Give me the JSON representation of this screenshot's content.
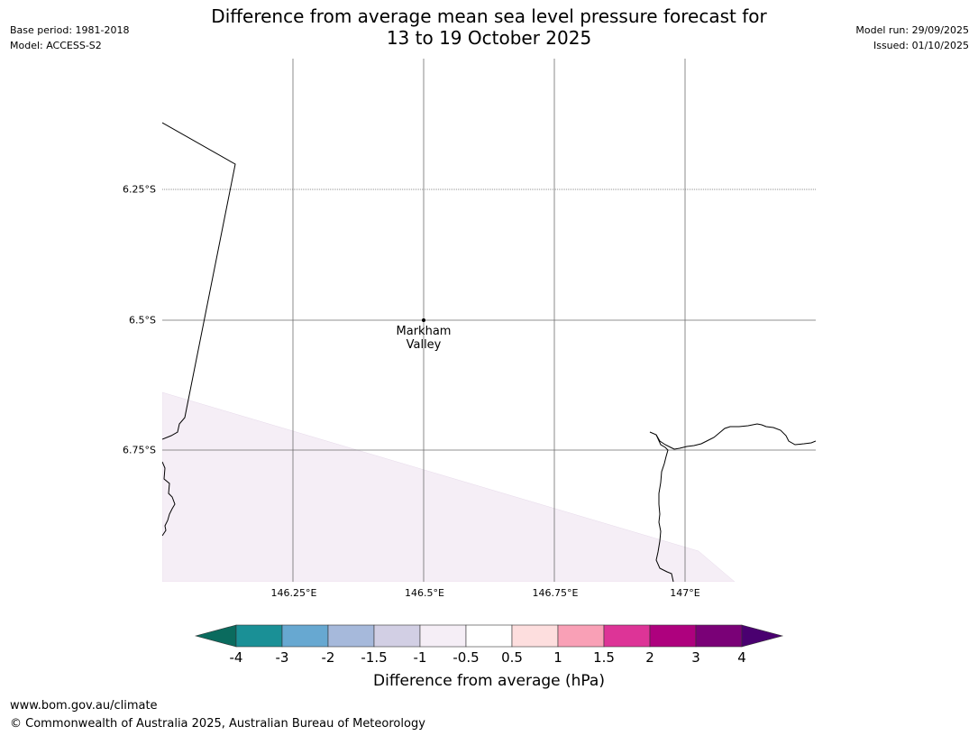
{
  "header": {
    "title_line1": "Difference from average mean sea level pressure forecast for",
    "title_line2": "13 to 19 October 2025",
    "base_period": "Base period: 1981-2018",
    "model": "Model: ACCESS-S2",
    "model_run": "Model run: 29/09/2025",
    "issued": "Issued: 01/10/2025"
  },
  "map": {
    "lat_labels": [
      "6.25°S",
      "6.5°S",
      "6.75°S"
    ],
    "lon_labels": [
      "146.25°E",
      "146.5°E",
      "146.75°E",
      "147°E"
    ],
    "place": {
      "line1": "Markham",
      "line2": "Valley"
    },
    "shaded_region_color": "#f5eef6",
    "coastline_color": "#000000",
    "gridline_color": "#555555"
  },
  "colorbar": {
    "title": "Difference from average (hPa)",
    "tick_labels": [
      "-4",
      "-3",
      "-2",
      "-1.5",
      "-1",
      "-0.5",
      "0.5",
      "1",
      "1.5",
      "2",
      "3",
      "4"
    ],
    "under_color": "#0a6b5e",
    "over_color": "#4a0070",
    "colors": [
      "#1a9096",
      "#67a8d1",
      "#a6b9db",
      "#d2cfe4",
      "#f5eef6",
      "#ffffff",
      "#fddede",
      "#f9a0b6",
      "#dd3497",
      "#ae017e",
      "#7a0177"
    ]
  },
  "footer": {
    "url": "www.bom.gov.au/climate",
    "copyright": "© Commonwealth of Australia 2025, Australian Bureau of Meteorology"
  }
}
